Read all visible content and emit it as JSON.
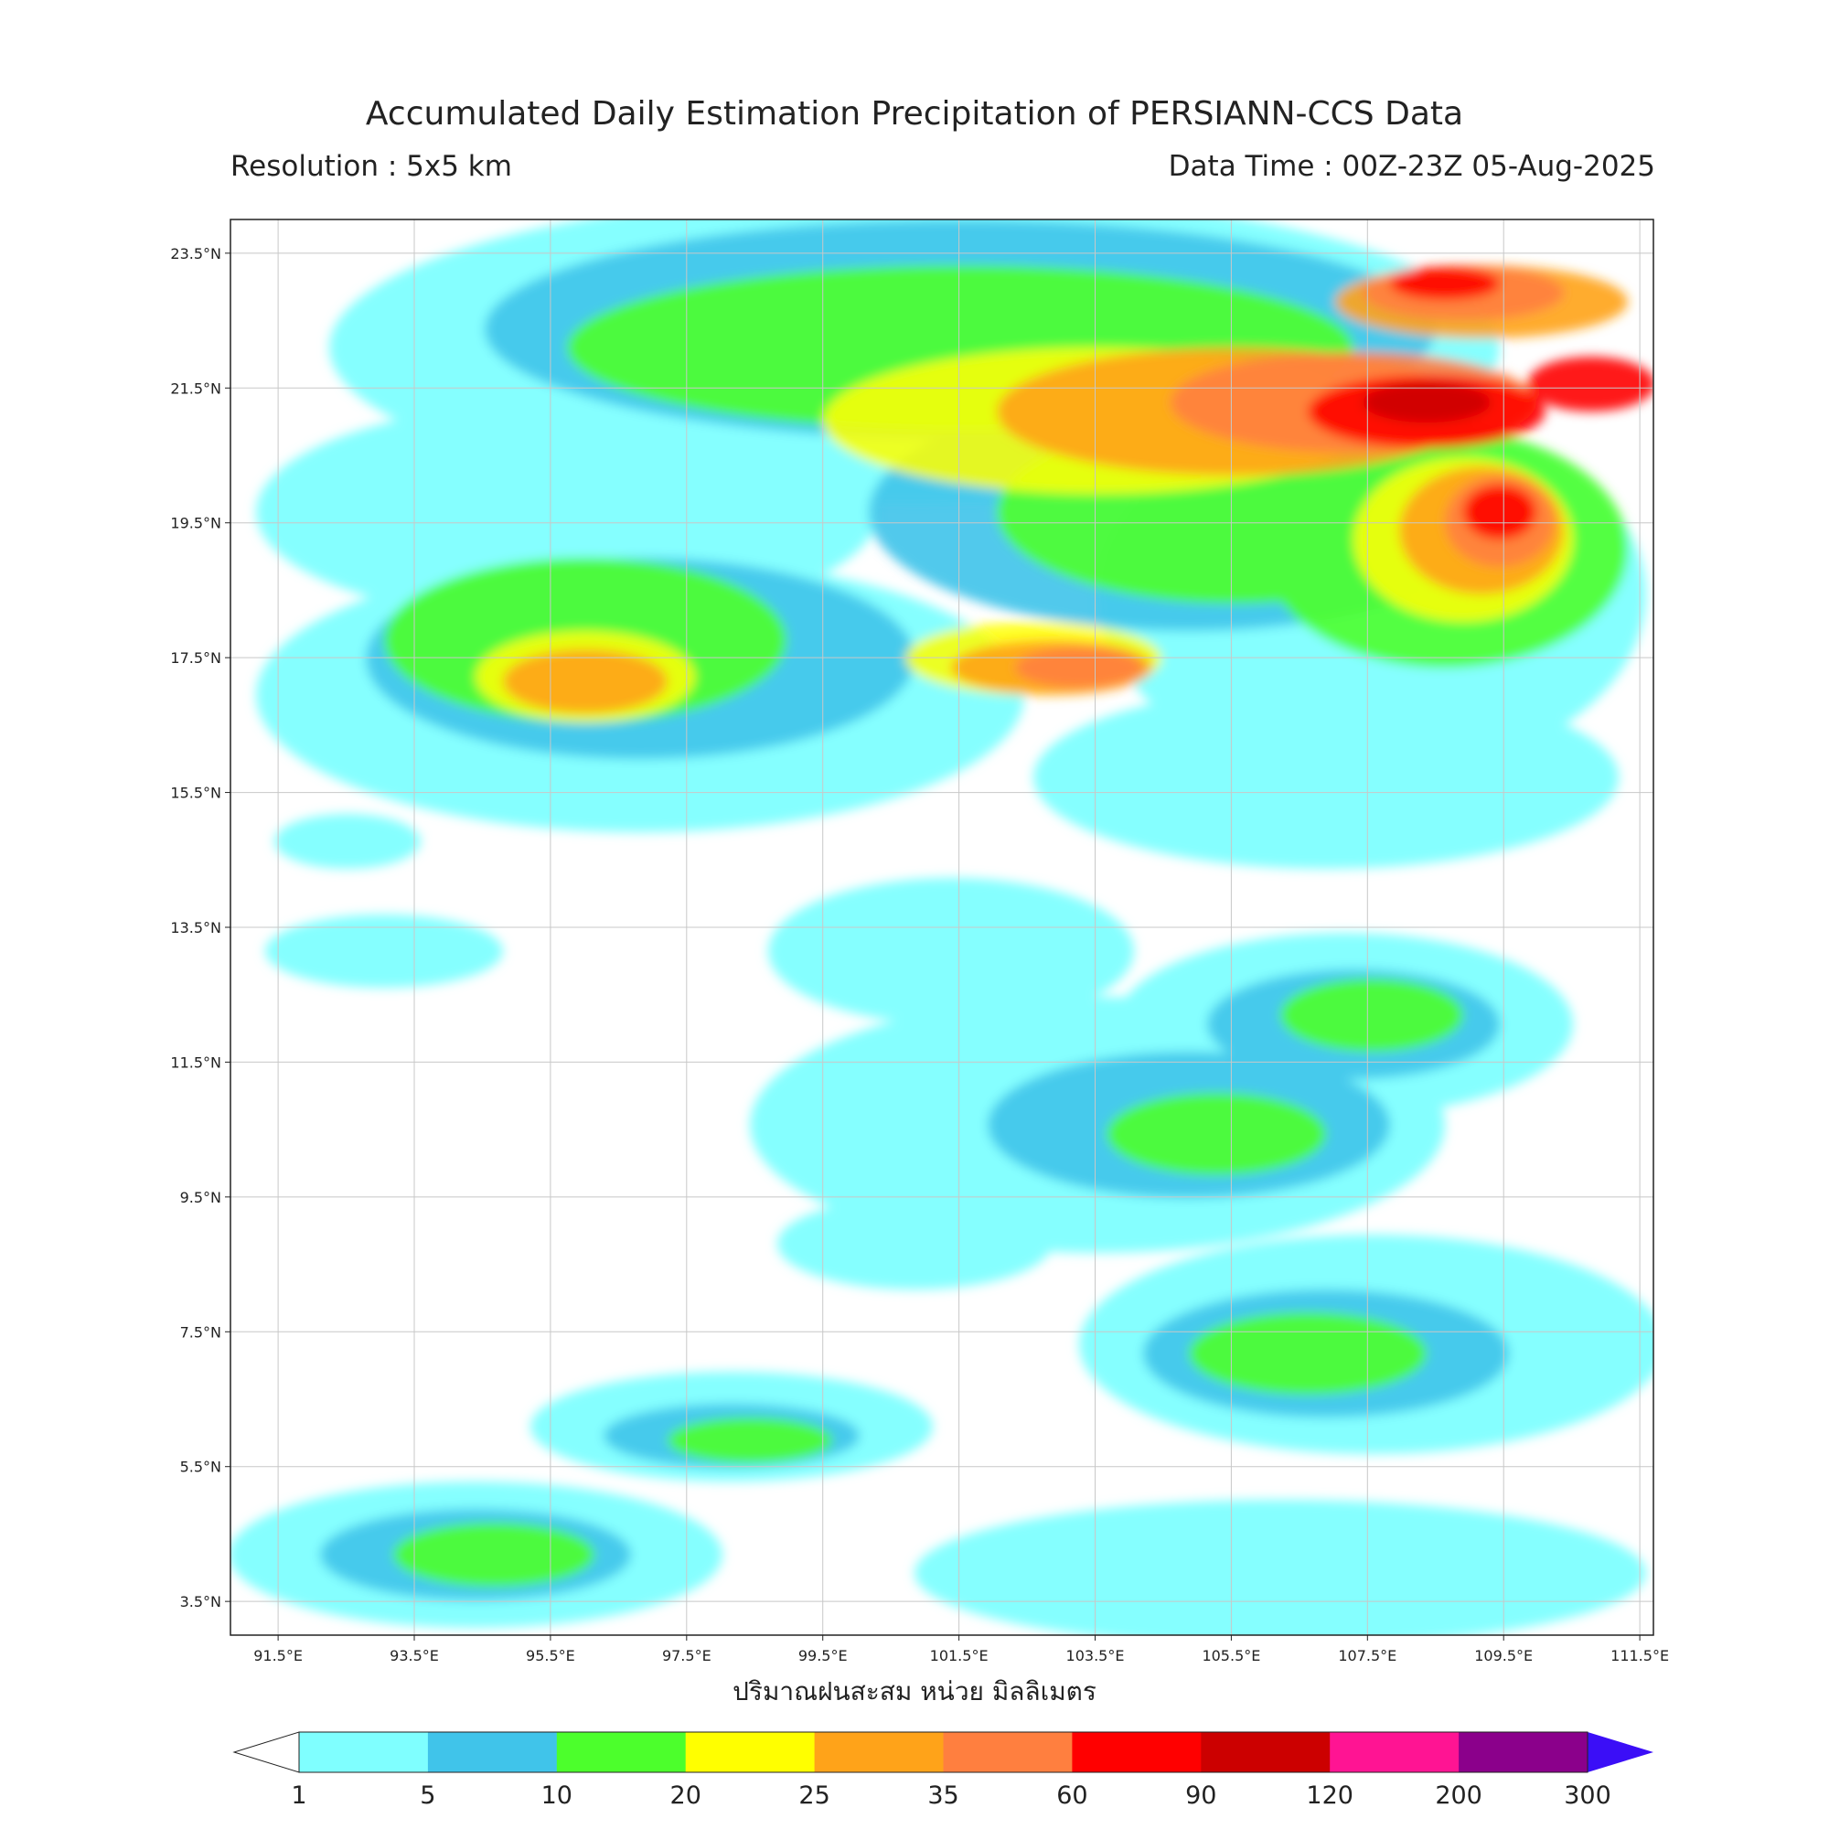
{
  "header": {
    "title": "Accumulated Daily Estimation Precipitation of PERSIANN-CCS Data",
    "resolution": "Resolution : 5x5 km",
    "data_time": "Data Time : 00Z-23Z 05-Aug-2025"
  },
  "xlabel": "ปริมาณฝนสะสม หน่วย มิลลิเมตร",
  "map": {
    "lon_range": [
      90.8,
      111.7
    ],
    "lat_range": [
      3.0,
      24.0
    ],
    "lon_ticks": [
      "91.5°E",
      "93.5°E",
      "95.5°E",
      "97.5°E",
      "99.5°E",
      "101.5°E",
      "103.5°E",
      "105.5°E",
      "107.5°E",
      "109.5°E",
      "111.5°E"
    ],
    "lon_values": [
      91.5,
      93.5,
      95.5,
      97.5,
      99.5,
      101.5,
      103.5,
      105.5,
      107.5,
      109.5,
      111.5
    ],
    "lat_ticks": [
      "3.5°N",
      "5.5°N",
      "7.5°N",
      "9.5°N",
      "11.5°N",
      "13.5°N",
      "15.5°N",
      "17.5°N",
      "19.5°N",
      "21.5°N",
      "23.5°N"
    ],
    "lat_values": [
      3.5,
      5.5,
      7.5,
      9.5,
      11.5,
      13.5,
      15.5,
      17.5,
      19.5,
      21.5,
      23.5
    ],
    "grid": true
  },
  "colorbar": {
    "labels": [
      "1",
      "5",
      "10",
      "20",
      "25",
      "35",
      "60",
      "90",
      "120",
      "200",
      "300"
    ],
    "colors": [
      "#7fffff",
      "#40c4ea",
      "#4cff2c",
      "#ffff00",
      "#ffa319",
      "#ff7f3f",
      "#ff0000",
      "#cc0000",
      "#ff1493",
      "#8b008b"
    ],
    "under_color": "#ffffff",
    "over_color": "#3b0ef7"
  }
}
